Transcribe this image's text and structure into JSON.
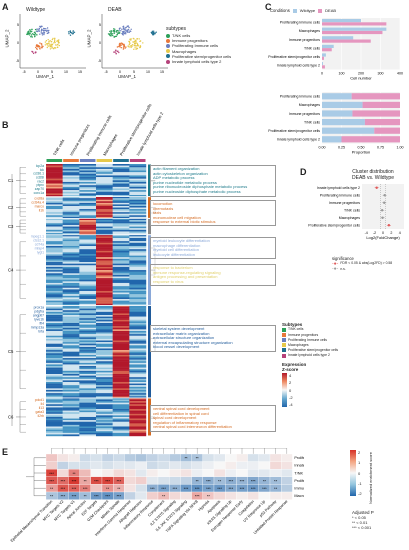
{
  "panels": {
    "A": "A",
    "B": "B",
    "C": "C",
    "D": "D",
    "E": "E"
  },
  "umap": {
    "plots": [
      {
        "title": "Wildtype"
      },
      {
        "title": "DEAB"
      }
    ],
    "xlabel": "UMAP_1",
    "ylabel": "UMAP_2",
    "xticks": [
      "-5",
      "0",
      "5",
      "10",
      "15"
    ],
    "yticks": [
      "-5",
      "0",
      "5"
    ]
  },
  "subtypes": {
    "title": "subtypes",
    "items": [
      {
        "label": "T/NK cells",
        "color": "#2ca05a"
      },
      {
        "label": "Immune progenitors",
        "color": "#e8783a"
      },
      {
        "label": "Proliferating Immune cells",
        "color": "#6b7fbf"
      },
      {
        "label": "Macrophages",
        "color": "#e6c94a"
      },
      {
        "label": "Proliferative stem/progenitor cells",
        "color": "#1f6f8f"
      },
      {
        "label": "Innate lymphoid cells type 2",
        "color": "#b5427a"
      }
    ]
  },
  "panelC": {
    "legend_title": "Conditions",
    "legend": [
      {
        "label": "Wildtype",
        "color": "#a9cbe6"
      },
      {
        "label": "DEAB",
        "color": "#e596bf"
      }
    ],
    "xlabel_top": "Cell number",
    "xlabel_bottom": "Proportion",
    "xticks_top": [
      "0",
      "100",
      "200",
      "300",
      "400"
    ],
    "xticks_bottom": [
      "0.00",
      "0.25",
      "0.50",
      "0.75",
      "1.00"
    ]
  },
  "chart_data": [
    {
      "type": "bar",
      "title": "",
      "xlabel": "Cell number",
      "categories": [
        "Proliferating Immune cells",
        "Macrophages",
        "Immune progenitors",
        "T/NK cells",
        "Proliferative stem/progenitor cells",
        "Innate lymphoid cells type 2"
      ],
      "series": [
        {
          "name": "Wildtype",
          "values": [
            200,
            330,
            160,
            60,
            20,
            5
          ]
        },
        {
          "name": "DEAB",
          "values": [
            330,
            310,
            250,
            50,
            10,
            15
          ]
        }
      ],
      "xlim": [
        0,
        400
      ]
    },
    {
      "type": "bar",
      "title": "",
      "xlabel": "Proportion",
      "categories": [
        "Proliferating Immune cells",
        "Macrophages",
        "Immune progenitors",
        "T/NK cells",
        "Proliferative stem/progenitor cells",
        "Innate lymphoid cells type 2"
      ],
      "series": [
        {
          "name": "Wildtype",
          "values": [
            0.38,
            0.52,
            0.39,
            0.55,
            0.67,
            0.25
          ]
        },
        {
          "name": "DEAB",
          "values": [
            0.62,
            0.48,
            0.61,
            0.45,
            0.33,
            0.75
          ]
        }
      ],
      "xlim": [
        0,
        1
      ]
    },
    {
      "type": "scatter",
      "title": "Cluster distribution DEAB vs. Wildtype",
      "xlabel": "Log2(FoldChange)",
      "categories": [
        "Innate lymphoid cells type 2",
        "Proliferating Immune cells",
        "Immune progenitors",
        "T/NK cells",
        "Macrophages",
        "Proliferative stem/progenitor cells"
      ],
      "values": [
        -1.5,
        0.4,
        0.3,
        -0.2,
        -0.1,
        1.4
      ],
      "significant": [
        true,
        false,
        false,
        false,
        false,
        true
      ],
      "xticks": [
        "-4",
        "-2",
        "0",
        "2",
        "4"
      ]
    }
  ],
  "panelD": {
    "title_line1": "Cluster distribution",
    "title_line2": "DEAB vs. Wildtype",
    "xlabel": "Log2(FoldChange)",
    "legend_title": "significance",
    "legend": [
      {
        "label": "FDR < 0.05 & abs(Log2FD) > 0.58",
        "color": "#e05a5a"
      },
      {
        "label": "n.s.",
        "color": "#999999"
      }
    ]
  },
  "heatmap": {
    "col_labels": [
      "T/NK cells",
      "Immune progenitors",
      "Proliferating Immune cells",
      "Macrophages",
      "Proliferative stem/progenitor cells",
      "Innate lymphoid cells type 2"
    ],
    "col_colors": [
      "#2ca05a",
      "#e8783a",
      "#6b7fbf",
      "#e6c94a",
      "#1f6f8f",
      "#b5427a"
    ],
    "clusters": [
      "C1",
      "C2",
      "C3",
      "C4",
      "C5",
      "C6"
    ],
    "genes_c1": [
      "lcp2a",
      "lck",
      "ccl36.1",
      "cd28l",
      "rac2",
      "ptprc",
      "zap70",
      "coro1a"
    ],
    "genes_c2": [
      "cxcl8a",
      "ccl34a.4",
      "marco",
      "il1b"
    ],
    "genes_c4": [
      "mpeg1.1",
      "ctss2.1",
      "cd74a",
      "mfap4",
      "lygl1"
    ],
    "genes_c5": [
      "prox1a",
      "pdgfra",
      "angptl7",
      "lyve1b",
      "flt4",
      "mmp13a",
      "tnfa"
    ],
    "genes_c6": [
      "pdcd1",
      "il4",
      "il13",
      "gata3",
      "il2rb"
    ],
    "go_terms": {
      "c1": [
        "actin filament organization",
        "actin cytoskeleton organization",
        "ADP metabolic process",
        "purine nucleotide metabolic process",
        "purine ribonucleoside diphosphate metabolic process",
        "purine nucleoside diphosphate metabolic process"
      ],
      "c2": [
        "locomotion",
        "chemotaxis",
        "taxis",
        "mononuclear cell migration",
        "response to external biotic stimulus"
      ],
      "c4": [
        "myeloid leukocyte differentiation",
        "macrophage differentiation",
        "myeloid cell differentiation",
        "leukocyte differentiation"
      ],
      "c4b": [
        "response to bacterium",
        "immune response-regulating signaling",
        "antigen processing and presentation",
        "response to virus"
      ],
      "c5": [
        "skeletal system development",
        "extracellular matrix organization",
        "extracellular structure organization",
        "external encapsulating structure organization",
        "blood vessel development"
      ],
      "c6": [
        "ventral spinal cord development",
        "cell differentiation in spinal cord",
        "spinal cord development",
        "regulation of inflammatory response",
        "ventral spinal cord interneuron differentiation"
      ]
    },
    "subtypes_legend_title": "Subtypes",
    "expression_title_line1": "Expression",
    "expression_title_line2": "Z-score",
    "scale_ticks": [
      "4",
      "2",
      "0",
      "-2",
      "-4"
    ]
  },
  "panelE": {
    "rows": [
      "Proliferative stem/progenitor cells",
      "Innate lymphoid cells type 2",
      "T/NK cells",
      "Proliferating Immune cells",
      "Immune progenitors",
      "Macrophages"
    ],
    "cols": [
      "Epithelial Mesenchymal Transition",
      "MYC Targets V2",
      "MYC Targets V1",
      "Apical Junction",
      "E2F Targets",
      "G2M Checkpoint",
      "Mitotic Spindle",
      "Interferon Gamma Response",
      "Allograft Rejection",
      "Inflammatory Response",
      "Complement",
      "IL2 STAT5 Signaling",
      "IL6 JAK STAT3 Signaling",
      "TNFA Signaling Via NFKB",
      "Hypoxia",
      "Apoptosis",
      "KRAS Signaling Up",
      "Estrogen Response Early",
      "Coagulation",
      "UV Response Up",
      "p53 Pathway",
      "Unfolded Protein Response"
    ],
    "values": [
      [
        0.5,
        0.2,
        0.1,
        -0.4,
        -0.3,
        -0.5,
        -0.4,
        -0.6,
        -0.7,
        -0.5,
        -0.4,
        -0.6,
        -0.8,
        -0.7,
        -0.3,
        -0.2,
        0.0,
        0.1,
        -0.3,
        -0.2,
        0.2,
        0.1
      ],
      [
        0.4,
        -0.5,
        -0.3,
        -0.3,
        -0.2,
        -0.3,
        -0.2,
        -0.2,
        -0.1,
        -0.4,
        -0.3,
        -0.2,
        -0.3,
        -0.2,
        -0.1,
        0.0,
        0.1,
        -0.1,
        -0.1,
        0.0,
        0.3,
        0.2
      ],
      [
        1.8,
        0.3,
        1.2,
        0.6,
        0.0,
        0.1,
        0.3,
        0.2,
        -0.2,
        0.1,
        0.0,
        0.1,
        0.2,
        -0.1,
        0.0,
        0.2,
        -0.1,
        0.0,
        -0.2,
        -0.2,
        -0.1,
        -0.2
      ],
      [
        1.6,
        1.4,
        1.9,
        0.8,
        1.7,
        1.8,
        1.5,
        0.3,
        0.4,
        -0.2,
        -0.3,
        -0.4,
        -0.5,
        -0.9,
        -1.0,
        -0.8,
        -1.0,
        -0.9,
        -1.1,
        -0.9,
        -0.8,
        -0.5
      ],
      [
        0.9,
        1.6,
        1.5,
        1.2,
        0.5,
        1.0,
        0.7,
        0.2,
        -0.3,
        -1.0,
        -1.2,
        -1.0,
        -1.3,
        -1.4,
        -1.2,
        -1.3,
        -1.1,
        -1.2,
        -1.3,
        -1.1,
        -0.9,
        -0.6
      ],
      [
        -0.7,
        -1.0,
        -1.2,
        -0.8,
        -1.3,
        -1.4,
        -1.2,
        -0.5,
        -0.2,
        0.4,
        0.6,
        0.3,
        0.2,
        0.8,
        0.5,
        0.3,
        0.2,
        0.1,
        0.2,
        0.0,
        0.1,
        0.1
      ]
    ],
    "stars": [
      [
        0,
        0,
        0,
        0,
        0,
        0,
        0,
        0,
        0,
        0,
        0,
        0,
        2,
        2,
        0,
        0,
        0,
        0,
        0,
        0,
        0,
        0
      ],
      [
        0,
        0,
        0,
        0,
        0,
        0,
        0,
        0,
        0,
        0,
        0,
        0,
        0,
        0,
        0,
        0,
        0,
        0,
        0,
        0,
        0,
        0
      ],
      [
        3,
        0,
        2,
        0,
        0,
        0,
        0,
        0,
        0,
        0,
        0,
        0,
        0,
        0,
        0,
        0,
        0,
        0,
        0,
        0,
        0,
        0
      ],
      [
        3,
        3,
        3,
        2,
        3,
        3,
        3,
        0,
        0,
        0,
        0,
        0,
        0,
        2,
        3,
        2,
        3,
        3,
        3,
        2,
        2,
        0
      ],
      [
        2,
        3,
        3,
        3,
        0,
        2,
        2,
        0,
        0,
        3,
        3,
        3,
        3,
        3,
        3,
        3,
        3,
        3,
        3,
        3,
        2,
        0
      ],
      [
        2,
        3,
        3,
        2,
        3,
        3,
        3,
        0,
        0,
        0,
        2,
        0,
        0,
        3,
        2,
        0,
        0,
        0,
        0,
        0,
        0,
        0
      ]
    ],
    "scale_title": "Normalized enrichment score",
    "scale_ticks": [
      "2",
      "1",
      "0",
      "-1",
      "-2"
    ],
    "p_title": "Adjusted P",
    "p_legend": [
      "* < 0.05",
      "** < 0.01",
      "*** < 0.001"
    ]
  }
}
